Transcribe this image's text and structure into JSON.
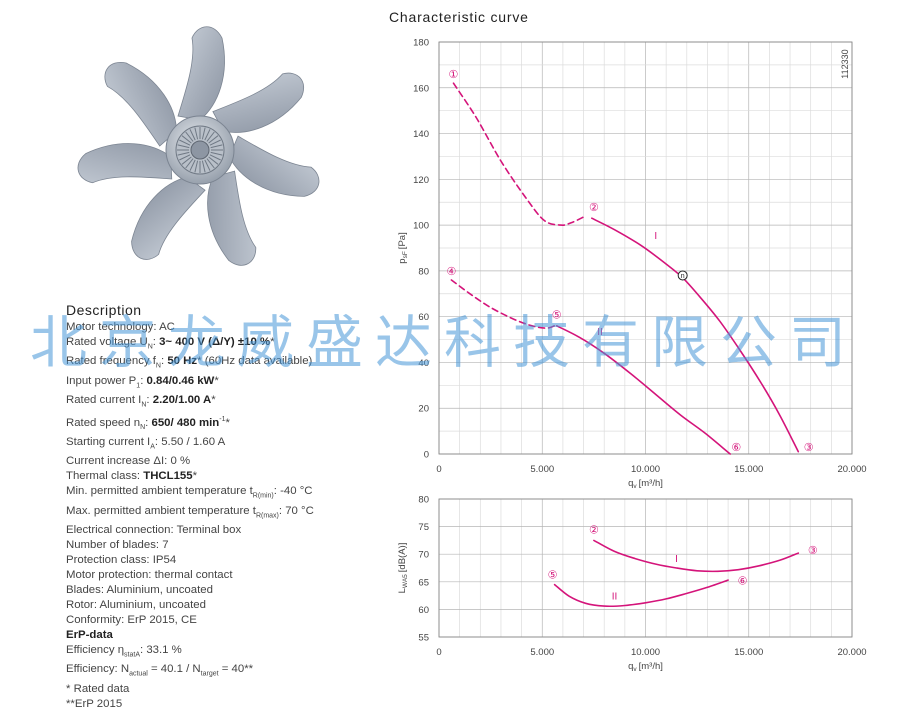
{
  "chart_title": "Characteristic curve",
  "watermark": "北京龙威盛达科技有限公司",
  "description": {
    "title": "Description",
    "lines": [
      [
        {
          "t": "Motor technology: AC"
        }
      ],
      [
        {
          "t": "Rated voltage U"
        },
        {
          "t": "N",
          "sub": true
        },
        {
          "t": ": "
        },
        {
          "t": "3~ 400 V (Δ/Y) ±10 %",
          "b": true
        },
        {
          "t": "*"
        }
      ],
      [
        {
          "t": "Rated frequency f"
        },
        {
          "t": "N",
          "sub": true
        },
        {
          "t": ": "
        },
        {
          "t": "50 Hz",
          "b": true
        },
        {
          "t": "* (60Hz data available)"
        }
      ],
      [
        {
          "t": "Input power P"
        },
        {
          "t": "1",
          "sub": true
        },
        {
          "t": ": "
        },
        {
          "t": "0.84/0.46 kW",
          "b": true
        },
        {
          "t": "*"
        }
      ],
      [
        {
          "t": "Rated current I"
        },
        {
          "t": "N",
          "sub": true
        },
        {
          "t": ": "
        },
        {
          "t": "2.20/1.00 A",
          "b": true
        },
        {
          "t": "*"
        }
      ],
      [
        {
          "t": "Rated speed n"
        },
        {
          "t": "N",
          "sub": true
        },
        {
          "t": ": "
        },
        {
          "t": "650/ 480 min",
          "b": true
        },
        {
          "t": "-1",
          "sup": true
        },
        {
          "t": "*"
        }
      ],
      [
        {
          "t": "Starting current I"
        },
        {
          "t": "A",
          "sub": true
        },
        {
          "t": ": 5.50 / 1.60 A"
        }
      ],
      [
        {
          "t": "Current increase ΔI: 0 %"
        }
      ],
      [
        {
          "t": "Thermal class: "
        },
        {
          "t": "THCL155",
          "b": true
        },
        {
          "t": "*"
        }
      ],
      [
        {
          "t": "Min. permitted ambient temperature t"
        },
        {
          "t": "R(min)",
          "sub": true
        },
        {
          "t": ": -40 °C"
        }
      ],
      [
        {
          "t": "Max. permitted ambient temperature t"
        },
        {
          "t": "R(max)",
          "sub": true
        },
        {
          "t": ": 70 °C"
        }
      ],
      [
        {
          "t": "Electrical connection: Terminal box"
        }
      ],
      [
        {
          "t": "Number of blades: 7"
        }
      ],
      [
        {
          "t": "Protection class: IP54"
        }
      ],
      [
        {
          "t": "Motor protection: thermal contact"
        }
      ],
      [
        {
          "t": "Blades: Aluminium, uncoated"
        }
      ],
      [
        {
          "t": "Rotor: Aluminium, uncoated"
        }
      ],
      [
        {
          "t": "Conformity: ErP 2015, CE"
        }
      ],
      [
        {
          "t": "ErP-data",
          "b": true
        }
      ],
      [
        {
          "t": "Efficiency η"
        },
        {
          "t": "statA",
          "sub": true
        },
        {
          "t": ": 33.1 %"
        }
      ],
      [
        {
          "t": "Efficiency: N"
        },
        {
          "t": "actual",
          "sub": true
        },
        {
          "t": " = 40.1 / N"
        },
        {
          "t": "target",
          "sub": true
        },
        {
          "t": " = 40**"
        }
      ],
      [
        {
          "t": "* Rated data"
        }
      ],
      [
        {
          "t": "**ErP 2015"
        }
      ]
    ]
  },
  "chart_data": [
    {
      "type": "line",
      "id": "pressure",
      "xlabel": "q",
      "xlabel_sub": "v",
      "xlabel_unit": "[m³/h]",
      "ylabel": "p",
      "ylabel_sub": "sF",
      "ylabel_unit": "[Pa]",
      "xlim": [
        0,
        20000
      ],
      "ylim": [
        0,
        180
      ],
      "xticks": [
        0,
        5000,
        10000,
        15000,
        20000
      ],
      "xtick_labels": [
        "0",
        "5.000",
        "10.000",
        "15.000",
        "20.000"
      ],
      "yticks": [
        0,
        20,
        40,
        60,
        80,
        100,
        120,
        140,
        160,
        180
      ],
      "xgrid_step": 1000,
      "ygrid_step": 10,
      "grid": true,
      "side_code": "112330",
      "color": "#d4147a",
      "series": [
        {
          "label": "I",
          "style": "dashed",
          "x": [
            700,
            1800,
            3000,
            4200,
            5100,
            5900,
            6400,
            7100
          ],
          "y": [
            162,
            147,
            128,
            112,
            102,
            100,
            101,
            104
          ]
        },
        {
          "label": "I",
          "style": "solid",
          "x": [
            7400,
            8500,
            9800,
            11000,
            11800,
            12600,
            13600,
            14600,
            15600,
            16500,
            17400
          ],
          "y": [
            103,
            98,
            91,
            83,
            77,
            69,
            58,
            45,
            31,
            17,
            1
          ]
        },
        {
          "label": "II",
          "style": "dashed",
          "x": [
            600,
            1500,
            2500,
            3600,
            4500,
            5200,
            5600
          ],
          "y": [
            76,
            70,
            64,
            59,
            56,
            55,
            56
          ]
        },
        {
          "label": "II",
          "style": "solid",
          "x": [
            5700,
            6800,
            8000,
            9300,
            10500,
            11700,
            12900,
            14100
          ],
          "y": [
            56,
            51,
            44,
            35,
            26,
            17,
            9,
            0
          ]
        }
      ],
      "markers": [
        {
          "label": "①",
          "x": 700,
          "y": 166,
          "kind": "pink"
        },
        {
          "label": "②",
          "x": 7500,
          "y": 108,
          "kind": "pink"
        },
        {
          "label": "③",
          "x": 17900,
          "y": 3,
          "kind": "pink"
        },
        {
          "label": "④",
          "x": 600,
          "y": 80,
          "kind": "pink"
        },
        {
          "label": "⑤",
          "x": 5700,
          "y": 61,
          "kind": "pink"
        },
        {
          "label": "⑥",
          "x": 14400,
          "y": 3,
          "kind": "pink"
        },
        {
          "label": "n",
          "x": 11800,
          "y": 78,
          "kind": "black"
        }
      ],
      "curve_labels": [
        {
          "label": "I",
          "x": 10500,
          "y": 94
        },
        {
          "label": "II",
          "x": 7800,
          "y": 52
        }
      ]
    },
    {
      "type": "line",
      "id": "sound",
      "xlabel": "q",
      "xlabel_sub": "v",
      "xlabel_unit": "[m³/h]",
      "ylabel": "L",
      "ylabel_sub": "WA5",
      "ylabel_unit": "[dB(A)]",
      "xlim": [
        0,
        20000
      ],
      "ylim": [
        55,
        80
      ],
      "xticks": [
        0,
        5000,
        10000,
        15000,
        20000
      ],
      "xtick_labels": [
        "0",
        "5.000",
        "10.000",
        "15.000",
        "20.000"
      ],
      "yticks": [
        55,
        60,
        65,
        70,
        75,
        80
      ],
      "xgrid_step": 1000,
      "ygrid_step": 5,
      "grid": true,
      "color": "#d4147a",
      "series": [
        {
          "label": "I",
          "style": "solid",
          "x": [
            7500,
            8500,
            9500,
            10500,
            11500,
            12500,
            13500,
            14500,
            15500,
            16500,
            17400
          ],
          "y": [
            72.5,
            70.5,
            69.2,
            68.2,
            67.5,
            67.0,
            66.9,
            67.2,
            67.9,
            68.9,
            70.2
          ]
        },
        {
          "label": "II",
          "style": "solid",
          "x": [
            5600,
            6300,
            7100,
            8000,
            9000,
            10000,
            11000,
            12000,
            13000,
            14000
          ],
          "y": [
            64.5,
            62.4,
            61.1,
            60.6,
            60.7,
            61.2,
            61.9,
            62.9,
            64.0,
            65.3
          ]
        }
      ],
      "markers": [
        {
          "label": "②",
          "x": 7500,
          "y": 74.5,
          "kind": "pink"
        },
        {
          "label": "③",
          "x": 18100,
          "y": 70.8,
          "kind": "pink"
        },
        {
          "label": "⑤",
          "x": 5500,
          "y": 66.3,
          "kind": "pink"
        },
        {
          "label": "⑥",
          "x": 14700,
          "y": 65.2,
          "kind": "pink"
        }
      ],
      "curve_labels": [
        {
          "label": "I",
          "x": 11500,
          "y": 68.6
        },
        {
          "label": "II",
          "x": 8500,
          "y": 61.8
        }
      ]
    }
  ]
}
